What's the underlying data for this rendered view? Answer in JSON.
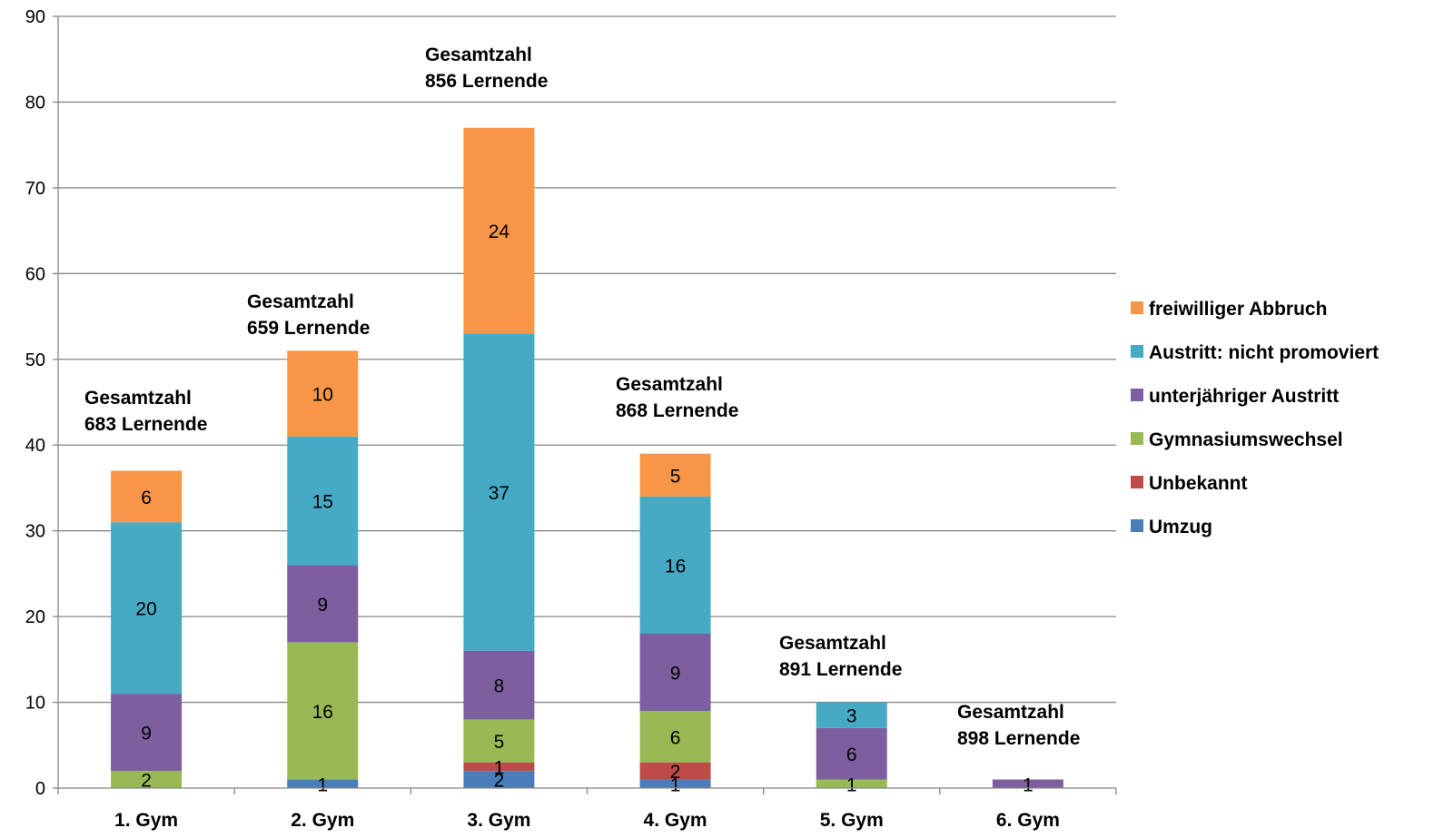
{
  "chart_data": {
    "type": "bar",
    "stacked": true,
    "categories": [
      "1. Gym",
      "2. Gym",
      "3. Gym",
      "4. Gym",
      "5. Gym",
      "6. Gym"
    ],
    "ylim": [
      0,
      90
    ],
    "yticks": [
      0,
      10,
      20,
      30,
      40,
      50,
      60,
      70,
      80,
      90
    ],
    "grid": true,
    "legend_position": "right",
    "series": [
      {
        "name": "Umzug",
        "color": "#4a7ebb",
        "values": [
          0,
          1,
          2,
          1,
          0,
          0
        ],
        "labels": [
          "",
          "1",
          "2",
          "1",
          "",
          ""
        ]
      },
      {
        "name": "Unbekannt",
        "color": "#be4b48",
        "values": [
          0,
          0,
          1,
          2,
          0,
          0
        ],
        "labels": [
          "",
          "",
          "1",
          "2",
          "",
          ""
        ]
      },
      {
        "name": "Gymnasiumswechsel",
        "color": "#98b954",
        "values": [
          2,
          16,
          5,
          6,
          1,
          0
        ],
        "labels": [
          "2",
          "16",
          "5",
          "6",
          "1",
          ""
        ]
      },
      {
        "name": "unterjähriger Austritt",
        "color": "#7d5fa0",
        "values": [
          9,
          9,
          8,
          9,
          6,
          1
        ],
        "labels": [
          "9",
          "9",
          "8",
          "9",
          "6",
          "1"
        ]
      },
      {
        "name": "Austritt: nicht promoviert",
        "color": "#46aac5",
        "values": [
          20,
          15,
          37,
          16,
          3,
          0
        ],
        "labels": [
          "20",
          "15",
          "37",
          "16",
          "3",
          ""
        ]
      },
      {
        "name": "freiwilliger Abbruch",
        "color": "#f79646",
        "values": [
          6,
          10,
          24,
          5,
          0,
          0
        ],
        "labels": [
          "6",
          "10",
          "24",
          "5",
          "",
          ""
        ]
      }
    ],
    "legend_order": [
      "freiwilliger Abbruch",
      "Austritt: nicht promoviert",
      "unterjähriger Austritt",
      "Gymnasiumswechsel",
      "Unbekannt",
      "Umzug"
    ],
    "annotations": [
      {
        "line1": "Gesamtzahl",
        "line2": "683 Lernende"
      },
      {
        "line1": "Gesamtzahl",
        "line2": "659 Lernende"
      },
      {
        "line1": "Gesamtzahl",
        "line2": "856 Lernende"
      },
      {
        "line1": "Gesamtzahl",
        "line2": "868 Lernende"
      },
      {
        "line1": "Gesamtzahl",
        "line2": "891 Lernende"
      },
      {
        "line1": "Gesamtzahl",
        "line2": "898 Lernende"
      }
    ]
  }
}
